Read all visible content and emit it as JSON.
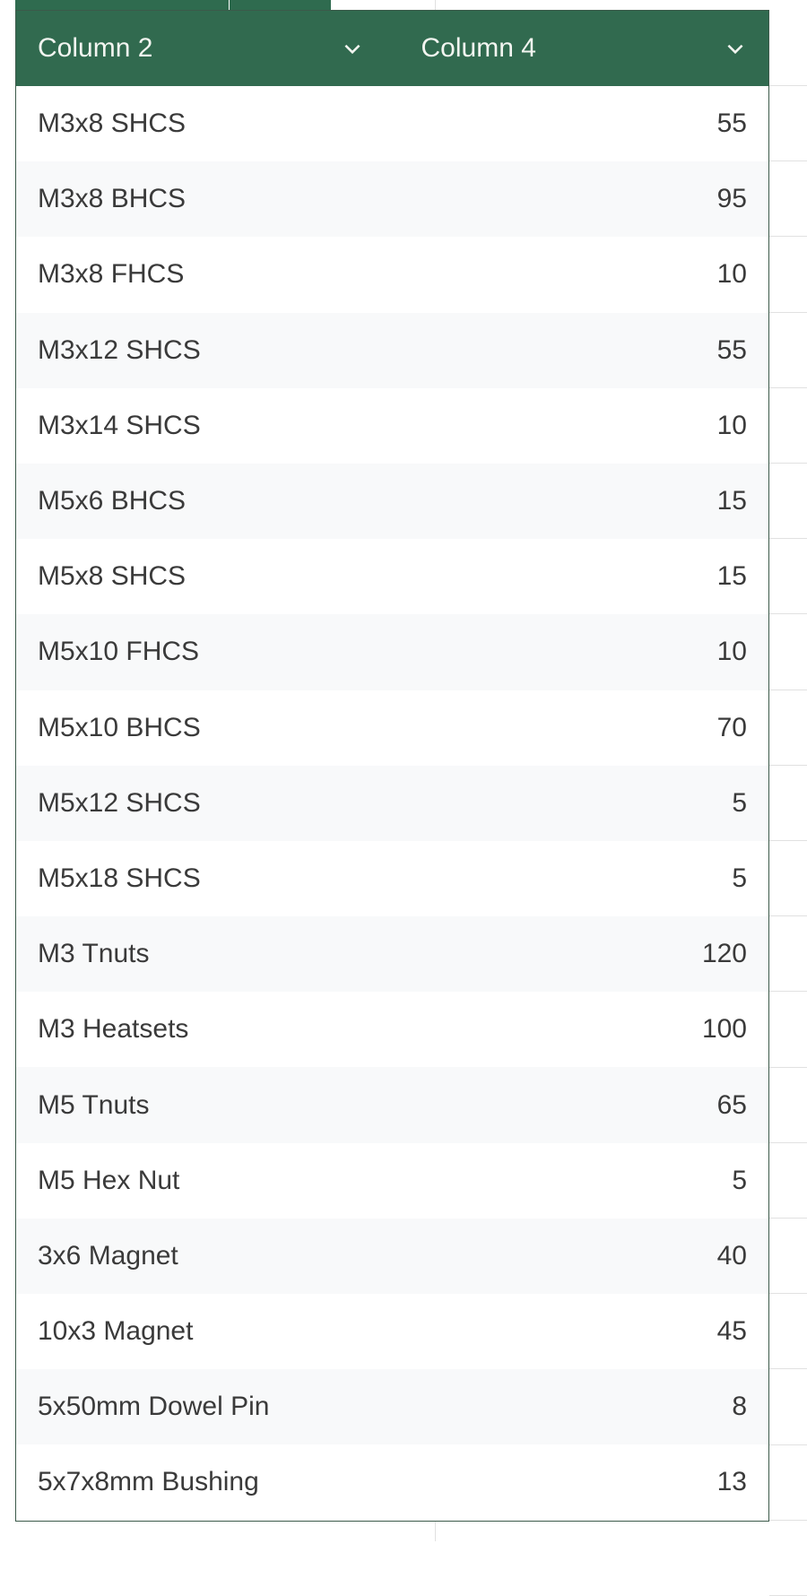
{
  "table": {
    "header_color": "#316a4f",
    "columns": [
      {
        "label": "Column 2",
        "icon": "chevron-down-icon"
      },
      {
        "label": "Column 4",
        "icon": "chevron-down-icon"
      }
    ],
    "rows": [
      {
        "item": "M3x8 SHCS",
        "qty": "55"
      },
      {
        "item": "M3x8 BHCS",
        "qty": "95"
      },
      {
        "item": "M3x8 FHCS",
        "qty": "10"
      },
      {
        "item": "M3x12 SHCS",
        "qty": "55"
      },
      {
        "item": "M3x14 SHCS",
        "qty": "10"
      },
      {
        "item": "M5x6 BHCS",
        "qty": "15"
      },
      {
        "item": "M5x8 SHCS",
        "qty": "15"
      },
      {
        "item": "M5x10 FHCS",
        "qty": "10"
      },
      {
        "item": "M5x10 BHCS",
        "qty": "70"
      },
      {
        "item": "M5x12 SHCS",
        "qty": "5"
      },
      {
        "item": "M5x18 SHCS",
        "qty": "5"
      },
      {
        "item": "M3 Tnuts",
        "qty": "120"
      },
      {
        "item": "M3 Heatsets",
        "qty": "100"
      },
      {
        "item": "M5 Tnuts",
        "qty": "65"
      },
      {
        "item": "M5 Hex Nut",
        "qty": "5"
      },
      {
        "item": "3x6 Magnet",
        "qty": "40"
      },
      {
        "item": "10x3 Magnet",
        "qty": "45"
      },
      {
        "item": "5x50mm Dowel Pin",
        "qty": "8"
      },
      {
        "item": "5x7x8mm Bushing",
        "qty": "13"
      }
    ]
  }
}
